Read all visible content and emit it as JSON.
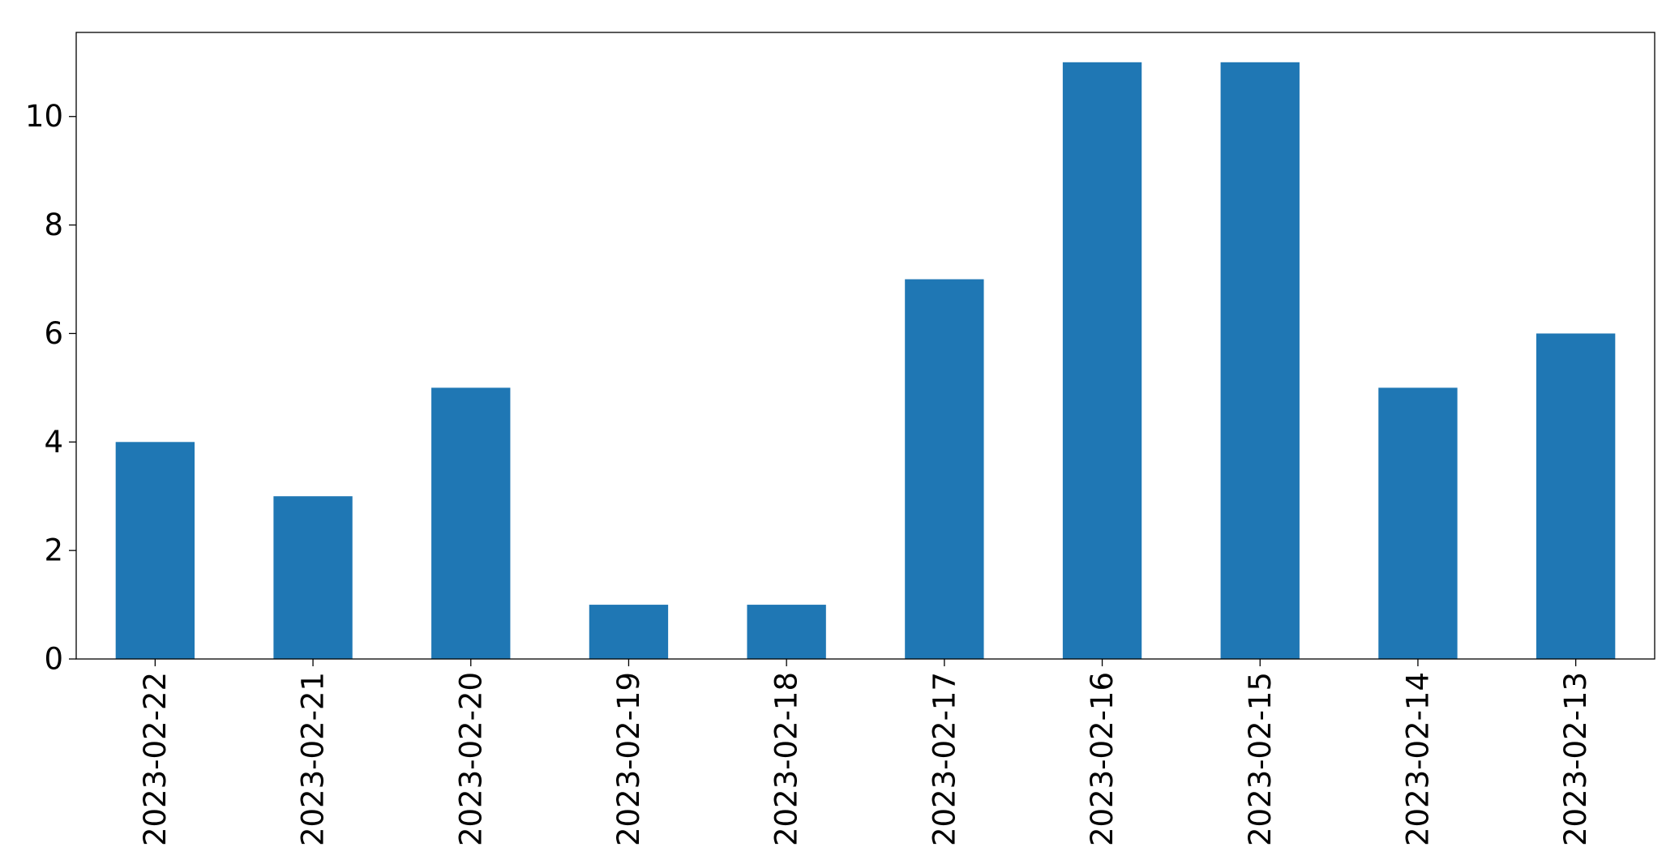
{
  "chart_data": {
    "type": "bar",
    "title": "",
    "xlabel": "",
    "ylabel": "",
    "categories": [
      "2023-02-22",
      "2023-02-21",
      "2023-02-20",
      "2023-02-19",
      "2023-02-18",
      "2023-02-17",
      "2023-02-16",
      "2023-02-15",
      "2023-02-14",
      "2023-02-13"
    ],
    "values": [
      4,
      3,
      5,
      1,
      1,
      7,
      11,
      11,
      5,
      6
    ],
    "ylim": [
      0,
      11.55
    ],
    "yticks": [
      0,
      2,
      4,
      6,
      8,
      10
    ],
    "bar_color": "#1f77b4",
    "grid": false,
    "legend": "none"
  }
}
